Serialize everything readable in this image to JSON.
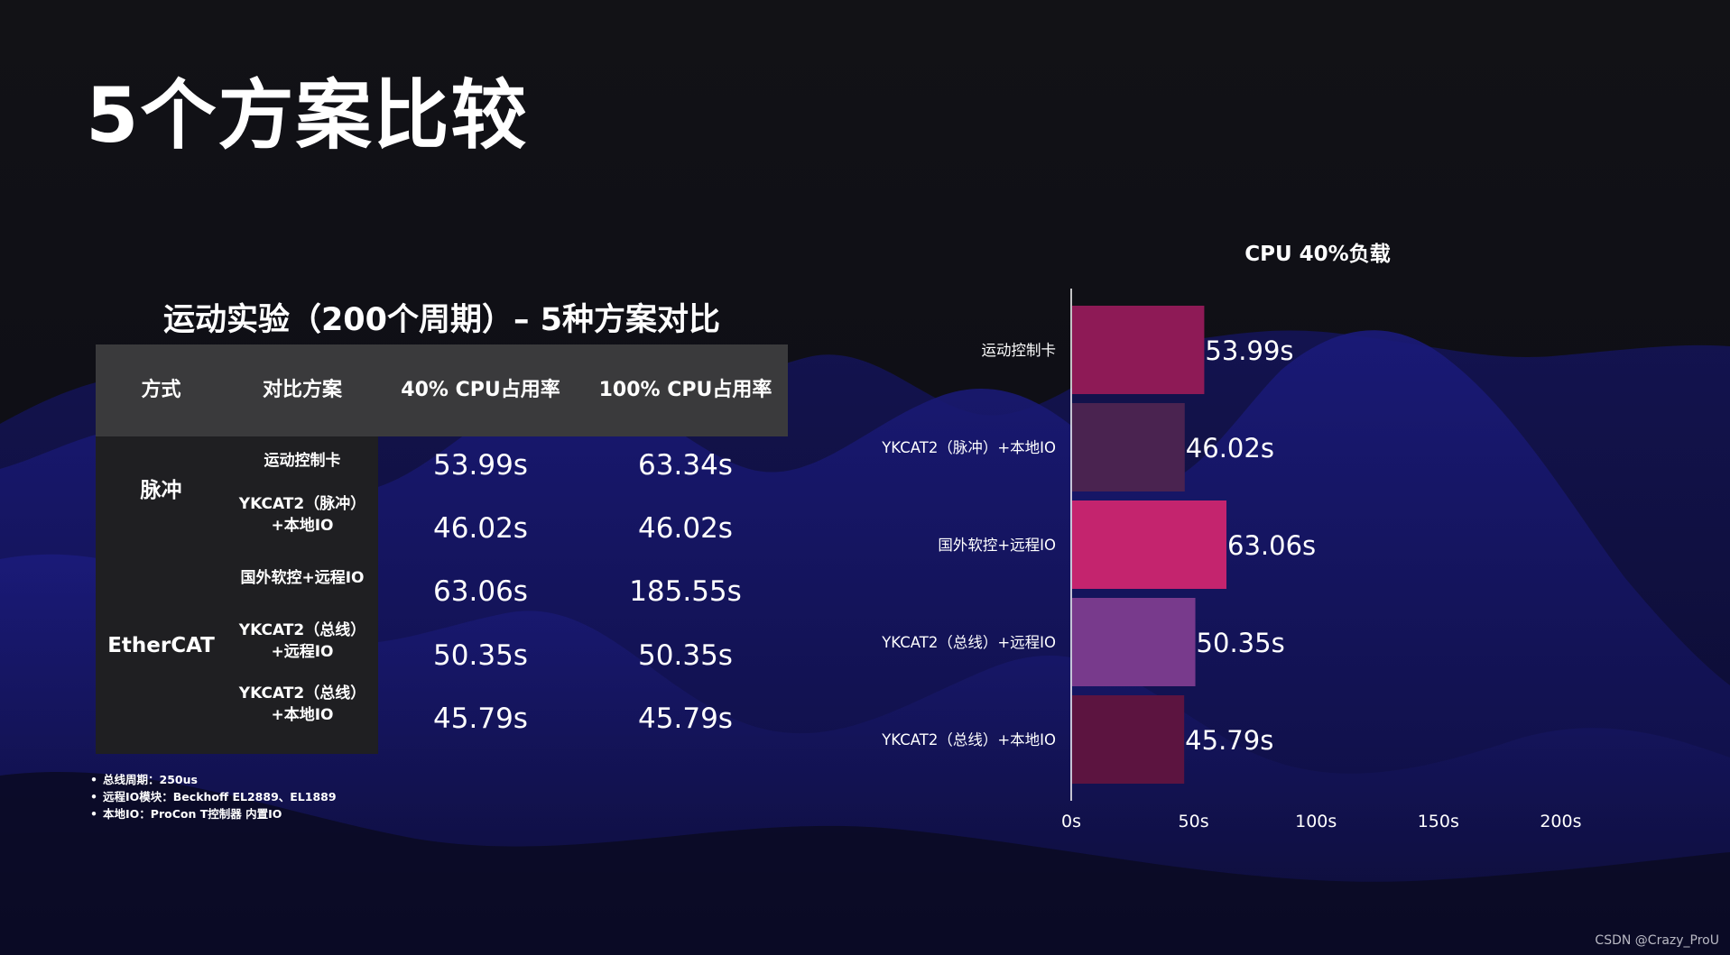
{
  "page": {
    "title": "5个方案比较",
    "watermark": "CSDN @Crazy_ProU"
  },
  "table": {
    "title": "运动实验（200个周期）– 5种方案对比",
    "headers": [
      "方式",
      "对比方案",
      "40% CPU占用率",
      "100% CPU占用率"
    ],
    "groups": [
      "脉冲",
      "EtherCAT"
    ],
    "rows": [
      {
        "name_line1": "运动控制卡",
        "name_line2": "",
        "cpu40": "53.99s",
        "cpu100": "63.34s"
      },
      {
        "name_line1": "YKCAT2（脉冲）",
        "name_line2": "+本地IO",
        "cpu40": "46.02s",
        "cpu100": "46.02s"
      },
      {
        "name_line1": "国外软控+远程IO",
        "name_line2": "",
        "cpu40": "63.06s",
        "cpu100": "185.55s"
      },
      {
        "name_line1": "YKCAT2（总线）",
        "name_line2": "+远程IO",
        "cpu40": "50.35s",
        "cpu100": "50.35s"
      },
      {
        "name_line1": "YKCAT2（总线）",
        "name_line2": "+本地IO",
        "cpu40": "45.79s",
        "cpu100": "45.79s"
      }
    ],
    "notes": [
      "总线周期：250us",
      "远程IO模块：Beckhoff EL2889、EL1889",
      "本地IO：ProCon T控制器 内置IO"
    ]
  },
  "chart_data": {
    "type": "bar",
    "orientation": "horizontal",
    "title": "CPU 40%负载",
    "categories": [
      "运动控制卡",
      "YKCAT2（脉冲）+本地IO",
      "国外软控+远程IO",
      "YKCAT2（总线）+远程IO",
      "YKCAT2（总线）+本地IO"
    ],
    "values": [
      53.99,
      46.02,
      63.06,
      50.35,
      45.79
    ],
    "data_labels": [
      "53.99s",
      "46.02s",
      "63.06s",
      "50.35s",
      "45.79s"
    ],
    "bar_colors": [
      "#8e1a56",
      "#4a2350",
      "#c4246e",
      "#783a8c",
      "#5c1440"
    ],
    "xlim": [
      0,
      200
    ],
    "xticks": [
      0,
      50,
      100,
      150,
      200
    ],
    "xtick_labels": [
      "0s",
      "50s",
      "100s",
      "150s",
      "200s"
    ],
    "grid": false,
    "legend": "none"
  }
}
